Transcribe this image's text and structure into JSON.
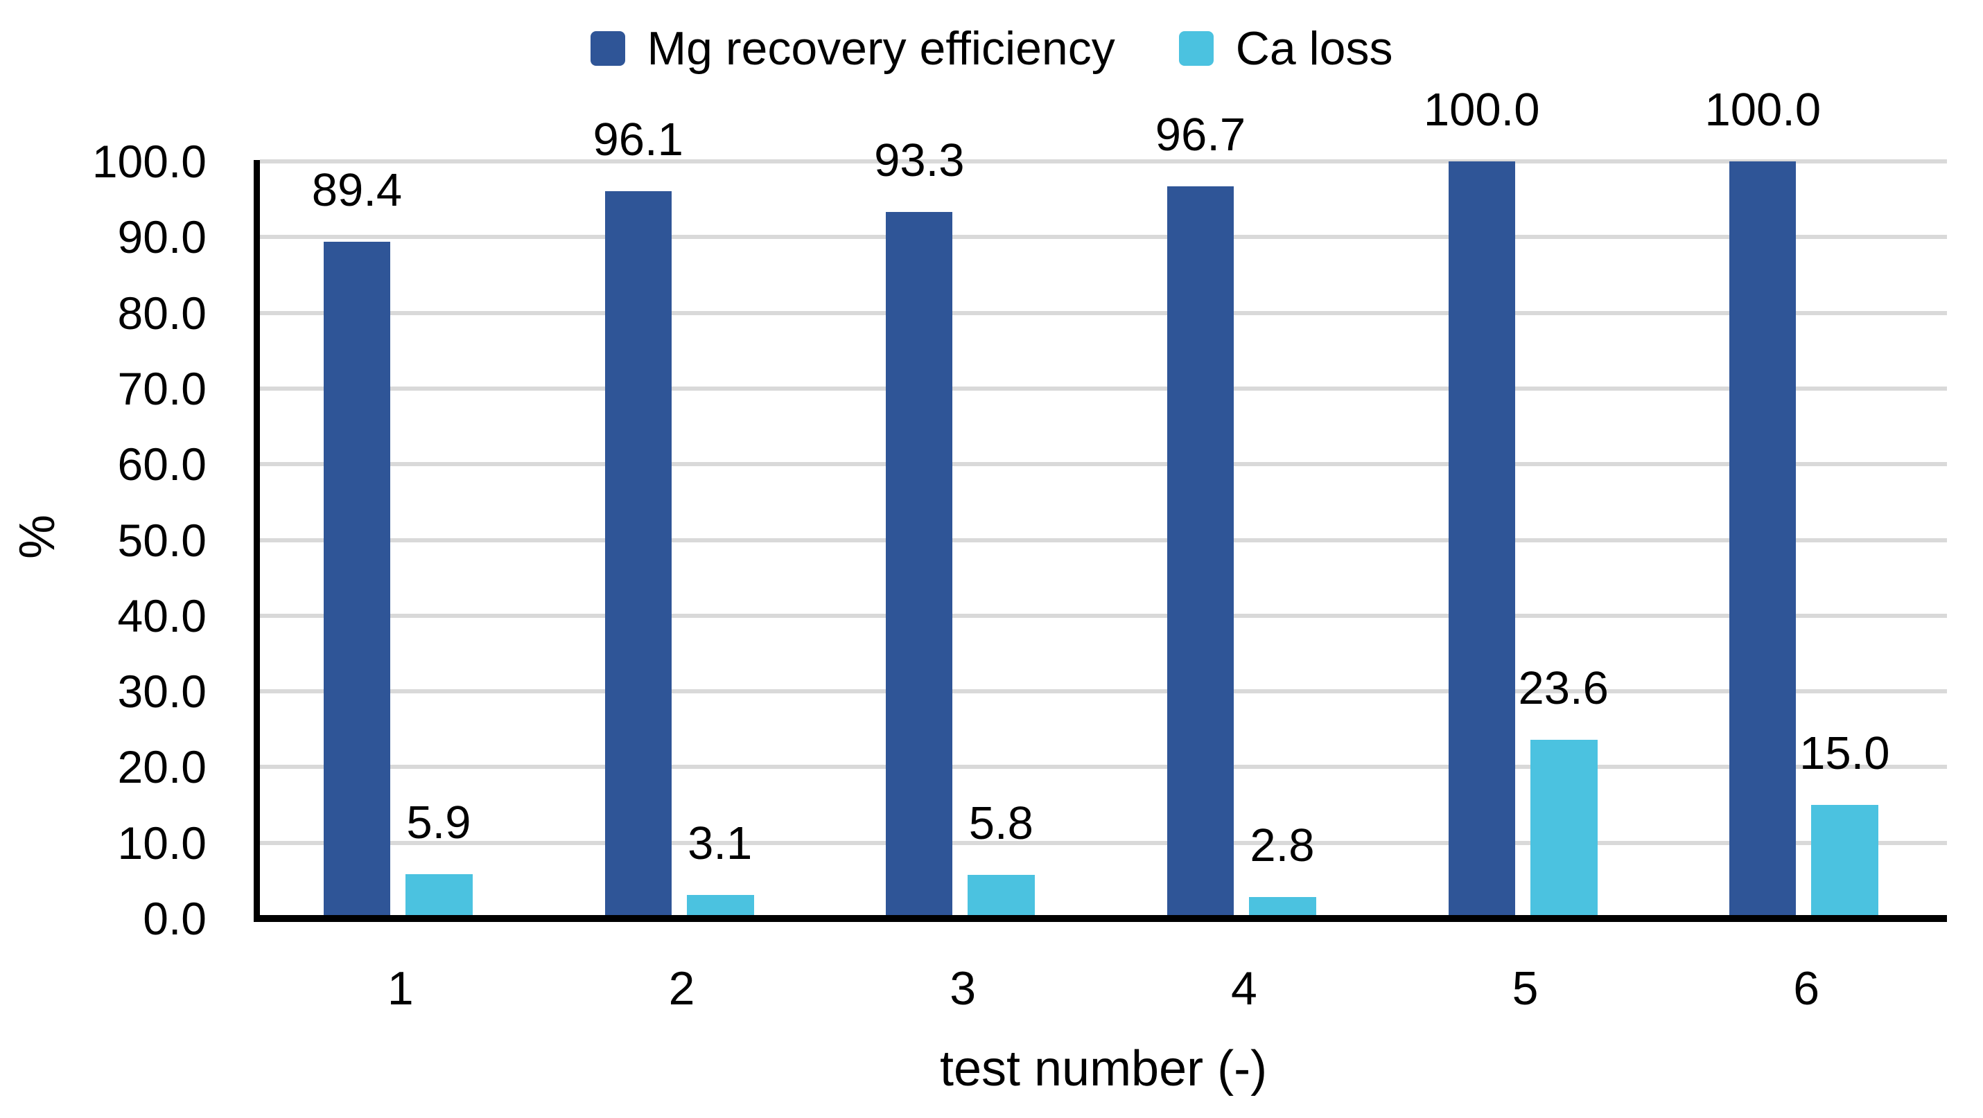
{
  "legend": {
    "items": [
      {
        "label": "Mg recovery efficiency",
        "color": "#2F5597"
      },
      {
        "label": "Ca loss",
        "color": "#4BC2E0"
      }
    ]
  },
  "chart_data": {
    "type": "bar",
    "categories": [
      "1",
      "2",
      "3",
      "4",
      "5",
      "6"
    ],
    "series": [
      {
        "name": "Mg recovery efficiency",
        "color": "#2F5597",
        "values": [
          89.4,
          96.1,
          93.3,
          96.7,
          100.0,
          100.0
        ],
        "labels": [
          "89.4",
          "96.1",
          "93.3",
          "96.7",
          "100.0",
          "100.0"
        ]
      },
      {
        "name": "Ca loss",
        "color": "#4BC2E0",
        "values": [
          5.9,
          3.1,
          5.8,
          2.8,
          23.6,
          15.0
        ],
        "labels": [
          "5.9",
          "3.1",
          "5.8",
          "2.8",
          "23.6",
          "15.0"
        ]
      }
    ],
    "xlabel": "test number (-)",
    "ylabel": "%",
    "ylim": [
      0,
      100
    ],
    "yticks": [
      "100.0",
      "90.0",
      "80.0",
      "70.0",
      "60.0",
      "50.0",
      "40.0",
      "30.0",
      "20.0",
      "10.0",
      "0.0"
    ],
    "grid": true,
    "legend_position": "top",
    "colors": {
      "grid": "#D9D9D9",
      "axis": "#000000",
      "text": "#000000"
    }
  }
}
